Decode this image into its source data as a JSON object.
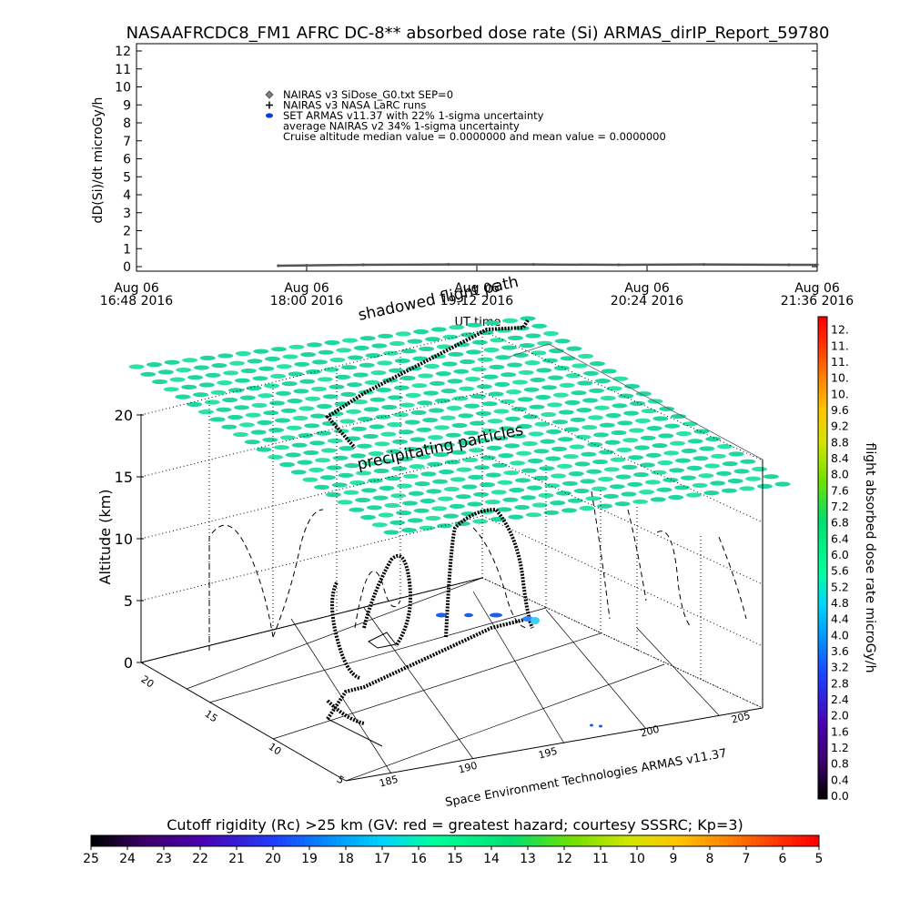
{
  "title": "NASAAFRCDC8_FM1 AFRC DC-8** absorbed dose rate (Si) ARMAS_dirIP_Report_59780",
  "chart_data": [
    {
      "type": "line",
      "title": "NASAAFRCDC8_FM1 AFRC DC-8** absorbed dose rate (Si) ARMAS_dirIP_Report_59780",
      "ylabel": "dD(Si)/dt microGy/h",
      "xlabel": "UT time",
      "ylim": [
        0,
        12
      ],
      "y_ticks": [
        "0",
        "1",
        "2",
        "3",
        "4",
        "5",
        "6",
        "7",
        "8",
        "9",
        "10",
        "11",
        "12"
      ],
      "x_ticks": [
        {
          "line1": "Aug 06",
          "line2": "16:48 2016"
        },
        {
          "line1": "Aug 06",
          "line2": "18:00 2016"
        },
        {
          "line1": "Aug 06",
          "line2": "19:12 2016"
        },
        {
          "line1": "Aug 06",
          "line2": "20:24 2016"
        },
        {
          "line1": "Aug 06",
          "line2": "21:36 2016"
        }
      ],
      "legend": [
        {
          "symbol": "diamond",
          "color": "#7f7f7f",
          "text": "NAIRAS v3 SiDose_G0.txt SEP=0"
        },
        {
          "symbol": "plus",
          "color": "#000000",
          "text": "NAIRAS v3 NASA LaRC runs"
        },
        {
          "symbol": "ellipse",
          "color": "#0a3cdc",
          "text": "SET ARMAS v11.37 with 22% 1-sigma uncertainty"
        },
        {
          "symbol": "none",
          "color": "#000000",
          "text": "average NAIRAS v2 34% 1-sigma uncertainty"
        },
        {
          "symbol": "none",
          "color": "#000000",
          "text": "Cruise altitude median value = 0.0000000 and mean value = 0.0000000"
        }
      ],
      "legend_position": "top-center",
      "series": [
        {
          "name": "NAIRAS v3 SiDose_G0.txt SEP=0",
          "x": [
            "Aug 06 17:48",
            "Aug 06 18:24",
            "Aug 06 19:00",
            "Aug 06 19:36",
            "Aug 06 20:12",
            "Aug 06 20:48",
            "Aug 06 21:24",
            "Aug 06 21:36"
          ],
          "values": [
            0.05,
            0.1,
            0.12,
            0.12,
            0.1,
            0.12,
            0.1,
            0.1
          ]
        }
      ]
    },
    {
      "type": "scatter",
      "title": "Cutoff rigidity (Rc) >25 km (GV: red = greatest hazard; courtesy SSSRC; Kp=3)",
      "zlabel": "Altitude (km)",
      "z_ticks": [
        "0",
        "5",
        "10",
        "15",
        "20"
      ],
      "zlim": [
        0,
        20
      ],
      "x_ticks": [
        "185",
        "190",
        "195",
        "200",
        "205"
      ],
      "y_ticks": [
        "5",
        "10",
        "15",
        "20"
      ],
      "annotations": [
        "shadowed flight path",
        "precipitating particles"
      ],
      "credit": "Space Environment Technologies ARMAS v11.37",
      "rigidity_scale": {
        "labels": [
          "25",
          "24",
          "23",
          "22",
          "21",
          "20",
          "19",
          "18",
          "17",
          "16",
          "15",
          "14",
          "13",
          "12",
          "11",
          "10",
          "9",
          "8",
          "7",
          "6",
          "5"
        ]
      },
      "dose_rate_scale": {
        "label": "flight absorbed dose rate microGy/h",
        "labels": [
          "0.0",
          "0.4",
          "0.8",
          "1.2",
          "1.6",
          "2.0",
          "2.4",
          "2.8",
          "3.2",
          "3.6",
          "4.0",
          "4.4",
          "4.8",
          "5.2",
          "5.6",
          "6.0",
          "6.4",
          "6.8",
          "7.2",
          "7.6",
          "8.0",
          "8.4",
          "8.8",
          "9.2",
          "9.6",
          "10.",
          "10.",
          "11.",
          "11.",
          "12."
        ]
      },
      "flight_path": [
        {
          "lon": 188.0,
          "lat": 12.0,
          "alt_km": 0.3
        },
        {
          "lon": 193.5,
          "lat": 15.0,
          "alt_km": 0.5
        },
        {
          "lon": 194.8,
          "lat": 15.8,
          "alt_km": 1.0
        },
        {
          "lon": 195.5,
          "lat": 16.2,
          "alt_km": 0.8
        },
        {
          "lon": 196.7,
          "lat": 17.1,
          "alt_km": 0.9
        }
      ],
      "dose_points": [
        {
          "lon": 196.7,
          "lat": 17.1,
          "alt_km": 0.9,
          "dose": 4.2
        },
        {
          "lon": 195.0,
          "lat": 16.5,
          "alt_km": 1.1,
          "dose": 3.4
        },
        {
          "lon": 194.2,
          "lat": 16.0,
          "alt_km": 1.2,
          "dose": 3.1
        },
        {
          "lon": 193.3,
          "lat": 15.6,
          "alt_km": 1.3,
          "dose": 3.0
        }
      ]
    }
  ]
}
